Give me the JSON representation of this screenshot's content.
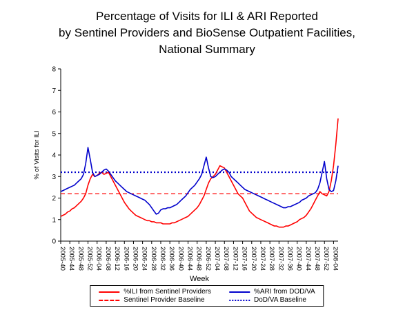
{
  "title": {
    "lines": [
      "Percentage of Visits for ILI & ARI Reported",
      "by Sentinel Providers and BioSense Outpatient Facilities,",
      "National Summary"
    ]
  },
  "colors": {
    "ili_red": "#ff0000",
    "ari_blue": "#0000cc",
    "axis_black": "#000000"
  },
  "chart_data": {
    "type": "line",
    "xlabel": "Week",
    "ylabel": "% of Visits for ILI",
    "ylim": [
      0,
      8
    ],
    "yticks": [
      0,
      1,
      2,
      3,
      4,
      5,
      6,
      7,
      8
    ],
    "x_tick_every": 4,
    "grid": false,
    "legend_position": "bottom",
    "x": [
      "2005-40",
      "2005-41",
      "2005-42",
      "2005-43",
      "2005-44",
      "2005-45",
      "2005-46",
      "2005-47",
      "2005-48",
      "2005-49",
      "2005-50",
      "2005-51",
      "2005-52",
      "2006-01",
      "2006-02",
      "2006-03",
      "2006-04",
      "2006-05",
      "2006-06",
      "2006-07",
      "2006-08",
      "2006-09",
      "2006-10",
      "2006-11",
      "2006-12",
      "2006-13",
      "2006-14",
      "2006-15",
      "2006-16",
      "2006-17",
      "2006-18",
      "2006-19",
      "2006-20",
      "2006-21",
      "2006-22",
      "2006-23",
      "2006-24",
      "2006-25",
      "2006-26",
      "2006-27",
      "2006-28",
      "2006-29",
      "2006-30",
      "2006-31",
      "2006-32",
      "2006-33",
      "2006-34",
      "2006-35",
      "2006-36",
      "2006-37",
      "2006-38",
      "2006-39",
      "2006-40",
      "2006-41",
      "2006-42",
      "2006-43",
      "2006-44",
      "2006-45",
      "2006-46",
      "2006-47",
      "2006-48",
      "2006-49",
      "2006-50",
      "2006-51",
      "2006-52",
      "2007-01",
      "2007-02",
      "2007-03",
      "2007-04",
      "2007-05",
      "2007-06",
      "2007-07",
      "2007-08",
      "2007-09",
      "2007-10",
      "2007-11",
      "2007-12",
      "2007-13",
      "2007-14",
      "2007-15",
      "2007-16",
      "2007-17",
      "2007-18",
      "2007-19",
      "2007-20",
      "2007-21",
      "2007-22",
      "2007-23",
      "2007-24",
      "2007-25",
      "2007-26",
      "2007-27",
      "2007-28",
      "2007-29",
      "2007-30",
      "2007-31",
      "2007-32",
      "2007-33",
      "2007-34",
      "2007-35",
      "2007-36",
      "2007-37",
      "2007-38",
      "2007-39",
      "2007-40",
      "2007-41",
      "2007-42",
      "2007-43",
      "2007-44",
      "2007-45",
      "2007-46",
      "2007-47",
      "2007-48",
      "2007-49",
      "2007-50",
      "2007-51",
      "2007-52",
      "2008-01",
      "2008-02",
      "2008-03",
      "2008-04",
      "2008-05",
      "2008-06"
    ],
    "series": [
      {
        "name": "%ILI from Sentinel Providers",
        "color": "#ff0000",
        "style": "solid",
        "values": [
          1.15,
          1.2,
          1.25,
          1.35,
          1.4,
          1.5,
          1.55,
          1.65,
          1.75,
          1.85,
          2.0,
          2.2,
          2.6,
          2.9,
          3.1,
          3.0,
          3.05,
          3.15,
          3.2,
          3.1,
          3.15,
          3.2,
          3.0,
          2.8,
          2.6,
          2.4,
          2.2,
          2.0,
          1.8,
          1.65,
          1.5,
          1.4,
          1.3,
          1.2,
          1.15,
          1.1,
          1.05,
          1.0,
          0.95,
          0.95,
          0.9,
          0.9,
          0.85,
          0.85,
          0.85,
          0.8,
          0.8,
          0.8,
          0.8,
          0.85,
          0.85,
          0.9,
          0.95,
          1.0,
          1.05,
          1.1,
          1.15,
          1.25,
          1.35,
          1.45,
          1.55,
          1.7,
          1.9,
          2.1,
          2.4,
          2.7,
          2.9,
          3.0,
          3.1,
          3.3,
          3.5,
          3.45,
          3.4,
          3.2,
          3.0,
          2.8,
          2.6,
          2.4,
          2.2,
          2.1,
          2.0,
          1.8,
          1.6,
          1.4,
          1.3,
          1.2,
          1.1,
          1.05,
          1.0,
          0.95,
          0.9,
          0.85,
          0.8,
          0.75,
          0.7,
          0.7,
          0.65,
          0.65,
          0.65,
          0.7,
          0.7,
          0.75,
          0.8,
          0.85,
          0.9,
          1.0,
          1.05,
          1.1,
          1.2,
          1.35,
          1.5,
          1.7,
          1.9,
          2.1,
          2.3,
          2.2,
          2.15,
          2.1,
          2.3,
          2.8,
          3.5,
          4.5,
          5.7
        ]
      },
      {
        "name": "%ARI from DOD/VA",
        "color": "#0000cc",
        "style": "solid",
        "values": [
          2.3,
          2.35,
          2.4,
          2.45,
          2.5,
          2.55,
          2.6,
          2.7,
          2.8,
          2.9,
          3.1,
          3.6,
          4.35,
          3.8,
          3.2,
          3.0,
          3.05,
          3.1,
          3.2,
          3.3,
          3.35,
          3.25,
          3.1,
          2.95,
          2.8,
          2.7,
          2.6,
          2.5,
          2.4,
          2.3,
          2.25,
          2.2,
          2.15,
          2.1,
          2.05,
          2.0,
          1.95,
          1.9,
          1.8,
          1.7,
          1.55,
          1.4,
          1.25,
          1.3,
          1.45,
          1.5,
          1.5,
          1.55,
          1.55,
          1.6,
          1.65,
          1.7,
          1.8,
          1.9,
          2.0,
          2.1,
          2.25,
          2.4,
          2.5,
          2.6,
          2.75,
          2.9,
          3.1,
          3.5,
          3.9,
          3.4,
          3.0,
          2.95,
          3.0,
          3.1,
          3.2,
          3.3,
          3.35,
          3.3,
          3.2,
          3.0,
          2.9,
          2.8,
          2.7,
          2.6,
          2.5,
          2.4,
          2.35,
          2.3,
          2.25,
          2.2,
          2.15,
          2.1,
          2.05,
          2.0,
          1.95,
          1.9,
          1.85,
          1.8,
          1.75,
          1.7,
          1.65,
          1.6,
          1.55,
          1.55,
          1.6,
          1.6,
          1.65,
          1.7,
          1.75,
          1.8,
          1.9,
          1.95,
          2.0,
          2.1,
          2.15,
          2.2,
          2.25,
          2.4,
          2.7,
          3.2,
          3.7,
          2.9,
          2.4,
          2.3,
          2.35,
          2.8,
          3.5
        ]
      }
    ],
    "baselines": [
      {
        "name": "Sentinel Provider Baseline",
        "color": "#ff0000",
        "style": "dashed",
        "value": 2.2
      },
      {
        "name": "DoD/VA Baseline",
        "color": "#0000cc",
        "style": "dotted",
        "value": 3.2
      }
    ]
  },
  "legend": {
    "items": [
      {
        "label": "%ILI from Sentinel Providers",
        "color": "#ff0000",
        "style": "solid"
      },
      {
        "label": "%ARI from DOD/VA",
        "color": "#0000cc",
        "style": "solid"
      },
      {
        "label": "Sentinel Provider Baseline",
        "color": "#ff0000",
        "style": "dashed"
      },
      {
        "label": "DoD/VA Baseline",
        "color": "#0000cc",
        "style": "dotted"
      }
    ]
  }
}
